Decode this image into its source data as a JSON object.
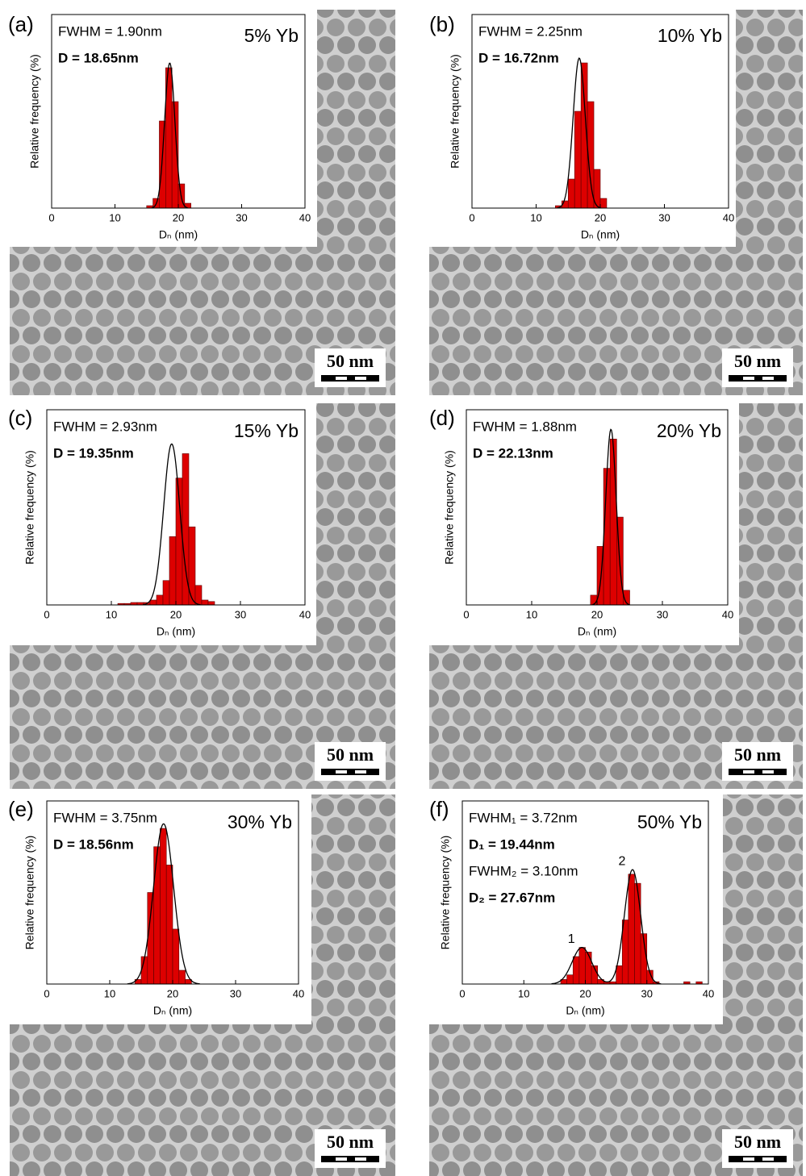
{
  "chart_data": [
    {
      "type": "histogram",
      "panel_label": "(a)",
      "title": "5% Yb",
      "annotations": [
        "FWHM = 1.90nm",
        "D = 18.65nm"
      ],
      "bins": [
        15,
        16,
        17,
        18,
        19,
        20,
        21,
        22
      ],
      "values": [
        0.5,
        2,
        18,
        29,
        22,
        5,
        1
      ],
      "color": "#dd0000",
      "fit": [
        {
          "center": 18.65,
          "fwhm": 1.9,
          "peak": 30
        }
      ],
      "fit_color": "#000000",
      "xlim": [
        0,
        40
      ],
      "xticks": [
        0,
        10,
        20,
        30,
        40
      ],
      "ylim": [
        0,
        40
      ],
      "x_label": "Dₙ (nm)",
      "y_label": "Relative frequency (%)",
      "scale_bar": "50 nm"
    },
    {
      "type": "histogram",
      "panel_label": "(b)",
      "title": "10% Yb",
      "annotations": [
        "FWHM = 2.25nm",
        "D = 16.72nm"
      ],
      "bins": [
        13,
        14,
        15,
        16,
        17,
        18,
        19,
        20,
        21
      ],
      "values": [
        0.5,
        1.5,
        6,
        20,
        30,
        22,
        8,
        2
      ],
      "color": "#dd0000",
      "fit": [
        {
          "center": 16.72,
          "fwhm": 2.25,
          "peak": 31
        }
      ],
      "fit_color": "#000000",
      "xlim": [
        0,
        40
      ],
      "xticks": [
        0,
        10,
        20,
        30,
        40
      ],
      "ylim": [
        0,
        40
      ],
      "x_label": "Dₙ (nm)",
      "y_label": "Relative frequency (%)",
      "scale_bar": "50 nm"
    },
    {
      "type": "histogram",
      "panel_label": "(c)",
      "title": "15% Yb",
      "annotations": [
        "FWHM = 2.93nm",
        "D = 19.35nm"
      ],
      "bins": [
        11,
        12,
        13,
        14,
        15,
        16,
        17,
        18,
        19,
        20,
        21,
        22,
        23,
        24,
        25,
        26
      ],
      "values": [
        0.3,
        0.3,
        0.5,
        0.5,
        0.5,
        1,
        2,
        5,
        14,
        26,
        31,
        16,
        4,
        1,
        0.7
      ],
      "color": "#dd0000",
      "fit": [
        {
          "center": 19.35,
          "fwhm": 2.93,
          "peak": 33
        }
      ],
      "fit_color": "#000000",
      "xlim": [
        0,
        40
      ],
      "xticks": [
        0,
        10,
        20,
        30,
        40
      ],
      "ylim": [
        0,
        40
      ],
      "x_label": "Dₙ (nm)",
      "y_label": "Relative frequency (%)",
      "scale_bar": "50 nm"
    },
    {
      "type": "histogram",
      "panel_label": "(d)",
      "title": "20% Yb",
      "annotations": [
        "FWHM = 1.88nm",
        "D = 22.13nm"
      ],
      "bins": [
        19,
        20,
        21,
        22,
        23,
        24,
        25
      ],
      "values": [
        2,
        12,
        28,
        34,
        18,
        3
      ],
      "color": "#dd0000",
      "fit": [
        {
          "center": 22.13,
          "fwhm": 1.88,
          "peak": 36
        }
      ],
      "fit_color": "#000000",
      "xlim": [
        0,
        40
      ],
      "xticks": [
        0,
        10,
        20,
        30,
        40
      ],
      "ylim": [
        0,
        40
      ],
      "x_label": "Dₙ (nm)",
      "y_label": "Relative frequency (%)",
      "scale_bar": "50 nm"
    },
    {
      "type": "histogram",
      "panel_label": "(e)",
      "title": "30% Yb",
      "annotations": [
        "FWHM = 3.75nm",
        "D = 18.56nm"
      ],
      "bins": [
        14,
        15,
        16,
        17,
        18,
        19,
        20,
        21,
        22,
        23
      ],
      "values": [
        1,
        6,
        20,
        30,
        34,
        26,
        12,
        3,
        1
      ],
      "color": "#dd0000",
      "fit": [
        {
          "center": 18.56,
          "fwhm": 3.75,
          "peak": 35
        }
      ],
      "fit_color": "#000000",
      "xlim": [
        0,
        40
      ],
      "xticks": [
        0,
        10,
        20,
        30,
        40
      ],
      "ylim": [
        0,
        40
      ],
      "x_label": "Dₙ (nm)",
      "y_label": "Relative frequency (%)",
      "scale_bar": "50 nm"
    },
    {
      "type": "histogram",
      "panel_label": "(f)",
      "title": "50% Yb",
      "annotations": [
        "FWHM₁ = 3.72nm",
        "D₁ = 19.44nm",
        "FWHM₂ = 3.10nm",
        "D₂ = 27.67nm"
      ],
      "bins": [
        16,
        17,
        18,
        19,
        20,
        21,
        22,
        23,
        24,
        25,
        26,
        27,
        28,
        29,
        30,
        31,
        32,
        33,
        34,
        35,
        36,
        37,
        38,
        39
      ],
      "values": [
        1,
        2,
        6,
        8,
        7,
        4,
        1,
        0.5,
        0.5,
        4,
        14,
        24,
        22,
        11,
        3,
        0.5,
        0,
        0,
        0,
        0,
        0.5,
        0,
        0.5
      ],
      "color": "#dd0000",
      "fit": [
        {
          "center": 19.44,
          "fwhm": 3.72,
          "peak": 8,
          "label": "1"
        },
        {
          "center": 27.67,
          "fwhm": 3.1,
          "peak": 25,
          "label": "2"
        }
      ],
      "fit_color": "#000000",
      "xlim": [
        0,
        40
      ],
      "xticks": [
        0,
        10,
        20,
        30,
        40
      ],
      "ylim": [
        0,
        40
      ],
      "x_label": "Dₙ (nm)",
      "y_label": "Relative frequency (%)",
      "scale_bar": "50 nm"
    }
  ]
}
